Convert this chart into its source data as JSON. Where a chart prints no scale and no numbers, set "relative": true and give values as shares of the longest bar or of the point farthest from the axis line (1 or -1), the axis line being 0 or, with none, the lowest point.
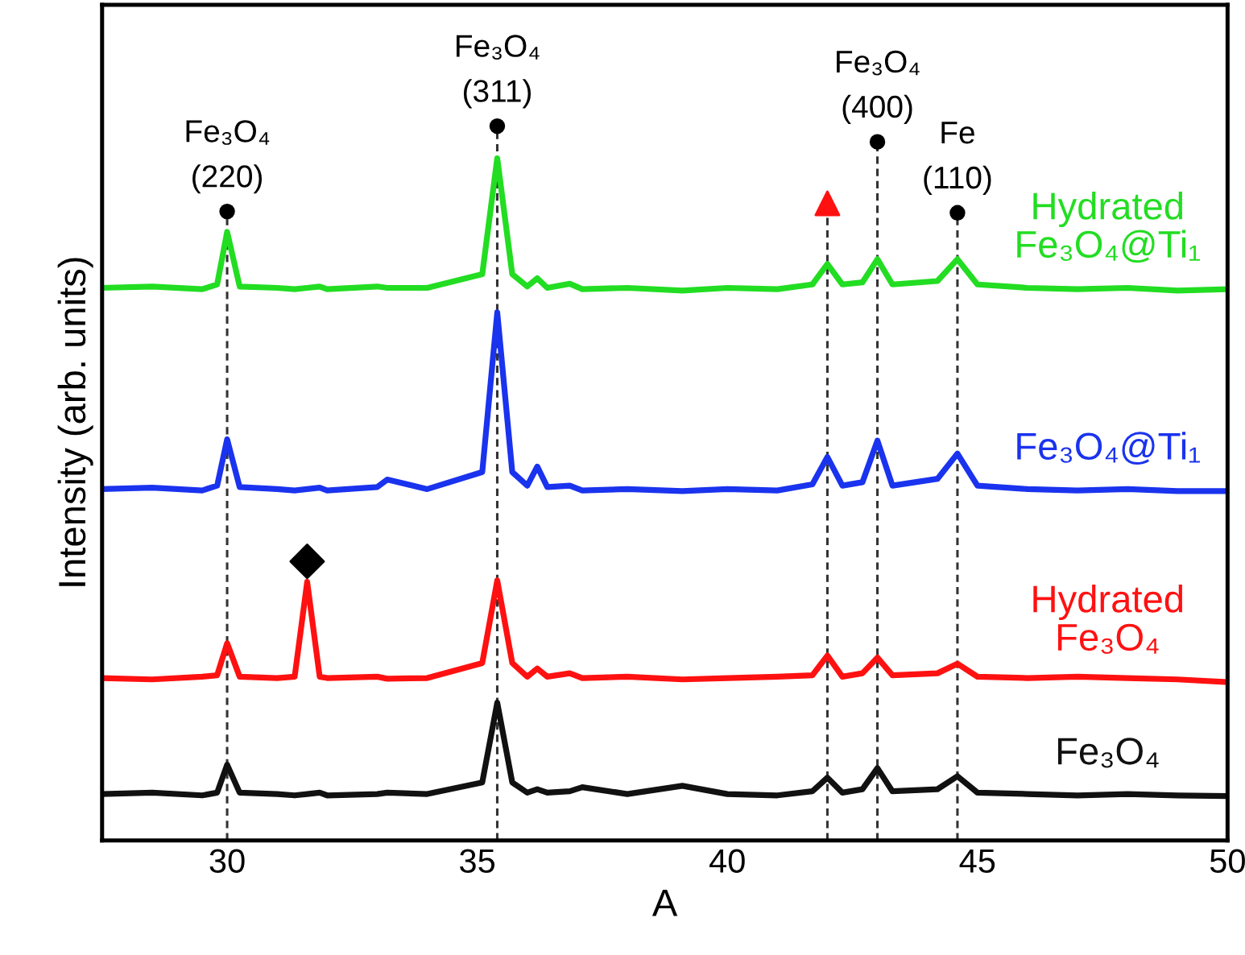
{
  "chart_data": {
    "type": "line",
    "relative": true,
    "xlabel": "A",
    "ylabel": "Intensity (arb. units)",
    "xlim": [
      27.5,
      50
    ],
    "xticks": [
      30,
      35,
      40,
      45,
      50
    ],
    "tick_labels": "x",
    "grid": false,
    "legend": false,
    "marker": "none",
    "line_style": "solid",
    "x": [
      27.5,
      28.5,
      29.5,
      29.8,
      30.0,
      30.25,
      31,
      31.35,
      31.6,
      31.85,
      32,
      33,
      33.2,
      34,
      35.1,
      35.4,
      35.7,
      36.0,
      36.2,
      36.4,
      36.85,
      37.1,
      38,
      39.1,
      40,
      41,
      41.7,
      42.0,
      42.3,
      42.7,
      43.0,
      43.3,
      44.2,
      44.6,
      45.0,
      46,
      47,
      48,
      49,
      50
    ],
    "series": [
      {
        "name": "Hydrated\nFe₃O₄@Ti₁",
        "color": "#22dd22",
        "values": [
          0.81,
          0.812,
          0.808,
          0.815,
          0.892,
          0.812,
          0.81,
          0.808,
          0.81,
          0.812,
          0.808,
          0.812,
          0.81,
          0.81,
          0.83,
          1.0,
          0.83,
          0.812,
          0.824,
          0.81,
          0.816,
          0.808,
          0.81,
          0.806,
          0.81,
          0.808,
          0.815,
          0.845,
          0.815,
          0.818,
          0.852,
          0.815,
          0.82,
          0.852,
          0.815,
          0.81,
          0.808,
          0.81,
          0.806,
          0.808
        ]
      },
      {
        "name": "Fe₃O₄@Ti₁",
        "color": "#1a33ee",
        "values": [
          0.515,
          0.517,
          0.513,
          0.52,
          0.588,
          0.518,
          0.515,
          0.513,
          0.515,
          0.517,
          0.513,
          0.518,
          0.529,
          0.515,
          0.54,
          0.774,
          0.54,
          0.52,
          0.548,
          0.518,
          0.52,
          0.513,
          0.515,
          0.512,
          0.515,
          0.513,
          0.522,
          0.562,
          0.52,
          0.525,
          0.586,
          0.52,
          0.53,
          0.567,
          0.52,
          0.515,
          0.513,
          0.515,
          0.512,
          0.512
        ]
      },
      {
        "name": "Hydrated\nFe₃O₄",
        "color": "#ff1111",
        "values": [
          0.238,
          0.236,
          0.24,
          0.242,
          0.289,
          0.24,
          0.238,
          0.24,
          0.379,
          0.24,
          0.238,
          0.24,
          0.237,
          0.238,
          0.26,
          0.381,
          0.26,
          0.24,
          0.252,
          0.24,
          0.245,
          0.238,
          0.24,
          0.236,
          0.238,
          0.24,
          0.242,
          0.271,
          0.24,
          0.245,
          0.268,
          0.242,
          0.245,
          0.259,
          0.24,
          0.238,
          0.24,
          0.238,
          0.236,
          0.232
        ]
      },
      {
        "name": "Fe₃O₄",
        "color": "#111111",
        "values": [
          0.068,
          0.07,
          0.066,
          0.07,
          0.111,
          0.07,
          0.068,
          0.066,
          0.068,
          0.07,
          0.066,
          0.068,
          0.07,
          0.068,
          0.085,
          0.202,
          0.085,
          0.07,
          0.075,
          0.07,
          0.072,
          0.078,
          0.068,
          0.08,
          0.068,
          0.066,
          0.072,
          0.092,
          0.07,
          0.075,
          0.106,
          0.072,
          0.075,
          0.094,
          0.07,
          0.068,
          0.066,
          0.068,
          0.066,
          0.065
        ]
      },
      {
        "type": "scatter",
        "x": [
          42.0
        ],
        "values": [
          0.934
        ],
        "color": "#ff1111",
        "marker": "triangle"
      },
      {
        "type": "scatter",
        "x": [
          31.6
        ],
        "values": [
          0.409
        ],
        "color": "#000000",
        "marker": "diamond"
      }
    ],
    "ref_lines": [
      {
        "axis": "x",
        "value": 30.0,
        "color": "#333333",
        "line_style": "dashed"
      },
      {
        "axis": "x",
        "value": 35.4,
        "color": "#333333",
        "line_style": "dashed"
      },
      {
        "axis": "x",
        "value": 42.0,
        "color": "#333333",
        "line_style": "dashed"
      },
      {
        "axis": "x",
        "value": 43.0,
        "color": "#333333",
        "line_style": "dashed"
      },
      {
        "axis": "x",
        "value": 44.6,
        "color": "#333333",
        "line_style": "dashed"
      }
    ],
    "annotations": [
      {
        "text": "Fe₃O₄\n(220)",
        "x": 30.0,
        "y": 0.922
      },
      {
        "text": "Fe₃O₄\n(311)",
        "x": 35.4,
        "y": 1.047
      },
      {
        "text": "Fe₃O₄\n(400)",
        "x": 43.0,
        "y": 1.024
      },
      {
        "text": "Fe\n(110)",
        "x": 44.6,
        "y": 0.92
      }
    ]
  }
}
